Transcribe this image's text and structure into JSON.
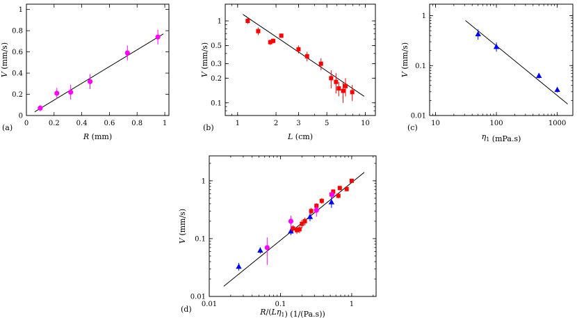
{
  "chart_data": [
    {
      "panel": "(a)",
      "type": "scatter",
      "xlabel": "R (mm)",
      "ylabel": "V (mm/s)",
      "xscale": "linear",
      "yscale": "linear",
      "xlim": [
        0,
        1.03
      ],
      "ylim": [
        0,
        1.05
      ],
      "xticks": [
        0,
        0.2,
        0.4,
        0.6,
        0.8,
        1
      ],
      "xticklabels": [
        "0",
        "0.2",
        "0.4",
        "0.6",
        "0.8",
        "1"
      ],
      "yticks": [
        0,
        0.2,
        0.4,
        0.6,
        0.8,
        1
      ],
      "yticklabels": [
        "0",
        "0.2",
        "0.4",
        "0.6",
        "0.8",
        "1"
      ],
      "series": [
        {
          "name": "magenta circles",
          "marker": "circle",
          "color": "#ff00ff",
          "x": [
            0.1,
            0.22,
            0.32,
            0.46,
            0.73,
            0.95
          ],
          "y": [
            0.07,
            0.21,
            0.22,
            0.32,
            0.59,
            0.74
          ],
          "err": [
            0.03,
            0.05,
            0.07,
            0.07,
            0.07,
            0.07
          ]
        }
      ],
      "fit": {
        "x": [
          0.06,
          0.99
        ],
        "y": [
          0.035,
          0.77
        ]
      }
    },
    {
      "panel": "(b)",
      "type": "scatter",
      "xlabel": "L (cm)",
      "ylabel": "V (mm/s)",
      "xscale": "log",
      "yscale": "log",
      "xlim": [
        0.8,
        12
      ],
      "ylim": [
        0.07,
        1.6
      ],
      "xticks": [
        1,
        2,
        3,
        5,
        10
      ],
      "xticklabels": [
        "1",
        "2",
        "3",
        "5",
        "10"
      ],
      "yticks": [
        0.1,
        0.2,
        0.3,
        0.5,
        1
      ],
      "yticklabels": [
        "0.1",
        "0.2",
        "0.3",
        "0.5",
        "1"
      ],
      "series": [
        {
          "name": "red squares",
          "marker": "square",
          "color": "#ff0000",
          "x": [
            1.2,
            1.45,
            1.8,
            1.9,
            2.2,
            3.0,
            3.5,
            4.5,
            5.4,
            5.9,
            6.2,
            6.7,
            7.0,
            7.9
          ],
          "y": [
            1.0,
            0.75,
            0.55,
            0.57,
            0.66,
            0.45,
            0.37,
            0.3,
            0.2,
            0.18,
            0.15,
            0.14,
            0.16,
            0.135
          ],
          "err": [
            0.08,
            0.08,
            0.04,
            0.04,
            0.04,
            0.05,
            0.05,
            0.05,
            0.05,
            0.05,
            0.03,
            0.04,
            0.04,
            0.03
          ]
        }
      ],
      "fit": {
        "x": [
          1.1,
          9.8
        ],
        "y": [
          1.2,
          0.12
        ]
      }
    },
    {
      "panel": "(c)",
      "type": "scatter",
      "xlabel": "η1 (mPa.s)",
      "ylabel": "V (mm/s)",
      "xscale": "log",
      "yscale": "log",
      "xlim": [
        8,
        1800
      ],
      "ylim": [
        0.01,
        1.7
      ],
      "xticks": [
        10,
        100,
        1000
      ],
      "xticklabels": [
        "10",
        "100",
        "1000"
      ],
      "yticks": [
        0.01,
        0.1,
        1
      ],
      "yticklabels": [
        "0.01",
        "0.1",
        "1"
      ],
      "series": [
        {
          "name": "blue triangles",
          "marker": "triangle",
          "color": "#0000ff",
          "x": [
            50,
            100,
            500,
            1000
          ],
          "y": [
            0.43,
            0.24,
            0.063,
            0.033
          ],
          "err": [
            0.1,
            0.05,
            0.008,
            0.004
          ]
        }
      ],
      "fit": {
        "x": [
          31,
          1480
        ],
        "y": [
          0.8,
          0.017
        ]
      }
    },
    {
      "panel": "(d)",
      "type": "scatter",
      "xlabel": "R/(Lη1) (1/(Pa.s))",
      "ylabel": "V (mm/s)",
      "xscale": "log",
      "yscale": "log",
      "xlim": [
        0.01,
        2.2
      ],
      "ylim": [
        0.01,
        2.7
      ],
      "xticks": [
        0.01,
        0.1,
        1
      ],
      "xticklabels": [
        "0.01",
        "0.1",
        "1"
      ],
      "yticks": [
        0.01,
        0.1,
        1
      ],
      "yticklabels": [
        "0.01",
        "0.1",
        "1"
      ],
      "series": [
        {
          "name": "blue triangles",
          "marker": "triangle",
          "color": "#0000ff",
          "x": [
            0.026,
            0.052,
            0.14,
            0.26,
            0.52
          ],
          "y": [
            0.033,
            0.063,
            0.135,
            0.24,
            0.43
          ],
          "err": [
            0.005,
            0.008,
            0.02,
            0.04,
            0.09
          ]
        },
        {
          "name": "red squares",
          "marker": "square",
          "color": "#ff0000",
          "x": [
            0.15,
            0.17,
            0.185,
            0.2,
            0.22,
            0.27,
            0.32,
            0.38,
            0.52,
            0.55,
            0.65,
            0.68,
            0.85,
            1.0
          ],
          "y": [
            0.15,
            0.14,
            0.145,
            0.18,
            0.2,
            0.3,
            0.37,
            0.45,
            0.58,
            0.65,
            0.55,
            0.75,
            0.72,
            1.0
          ],
          "err": [
            0.02,
            0.02,
            0.02,
            0.03,
            0.03,
            0.04,
            0.04,
            0.05,
            0.06,
            0.06,
            0.05,
            0.06,
            0.06,
            0.06
          ]
        },
        {
          "name": "magenta circles",
          "marker": "circle",
          "color": "#ff00ff",
          "x": [
            0.065,
            0.14,
            0.32,
            0.53
          ],
          "y": [
            0.07,
            0.2,
            0.31,
            0.58
          ],
          "err": [
            0.035,
            0.05,
            0.07,
            0.08
          ]
        }
      ],
      "fit": {
        "x": [
          0.016,
          1.5
        ],
        "y": [
          0.015,
          1.4
        ]
      }
    }
  ]
}
